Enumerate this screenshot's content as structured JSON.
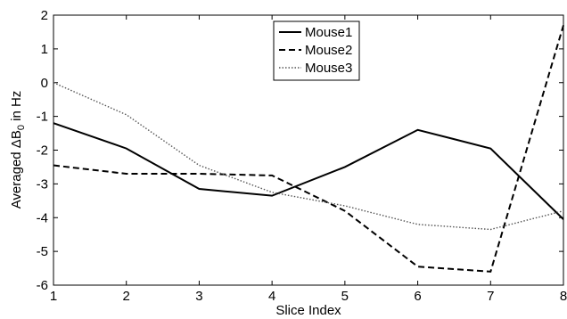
{
  "chart_data": {
    "type": "line",
    "x": [
      1,
      2,
      3,
      4,
      5,
      6,
      7,
      8
    ],
    "series": [
      {
        "name": "Mouse1",
        "values": [
          -1.2,
          -1.95,
          -3.15,
          -3.35,
          -2.5,
          -1.4,
          -1.95,
          -4.05
        ],
        "style": "solid",
        "color": "#000000"
      },
      {
        "name": "Mouse2",
        "values": [
          -2.45,
          -2.7,
          -2.7,
          -2.75,
          -3.8,
          -5.45,
          -5.6,
          1.7
        ],
        "style": "dashed",
        "color": "#000000"
      },
      {
        "name": "Mouse3",
        "values": [
          0.0,
          -0.95,
          -2.45,
          -3.25,
          -3.65,
          -4.2,
          -4.35,
          -3.8
        ],
        "style": "dotted",
        "color": "#555555"
      }
    ],
    "title": "",
    "xlabel": "Slice Index",
    "ylabel_prefix": "Averaged ",
    "ylabel_symbol": "ΔB",
    "ylabel_subscript": "0",
    "ylabel_suffix": " in Hz",
    "xlim": [
      1,
      8
    ],
    "ylim": [
      -6,
      2
    ],
    "xticks": [
      "1",
      "2",
      "3",
      "4",
      "5",
      "6",
      "7",
      "8"
    ],
    "yticks": [
      "2",
      "1",
      "0",
      "-1",
      "-2",
      "-3",
      "-4",
      "-5",
      "-6"
    ],
    "grid": false,
    "legend_position": "top-center"
  }
}
